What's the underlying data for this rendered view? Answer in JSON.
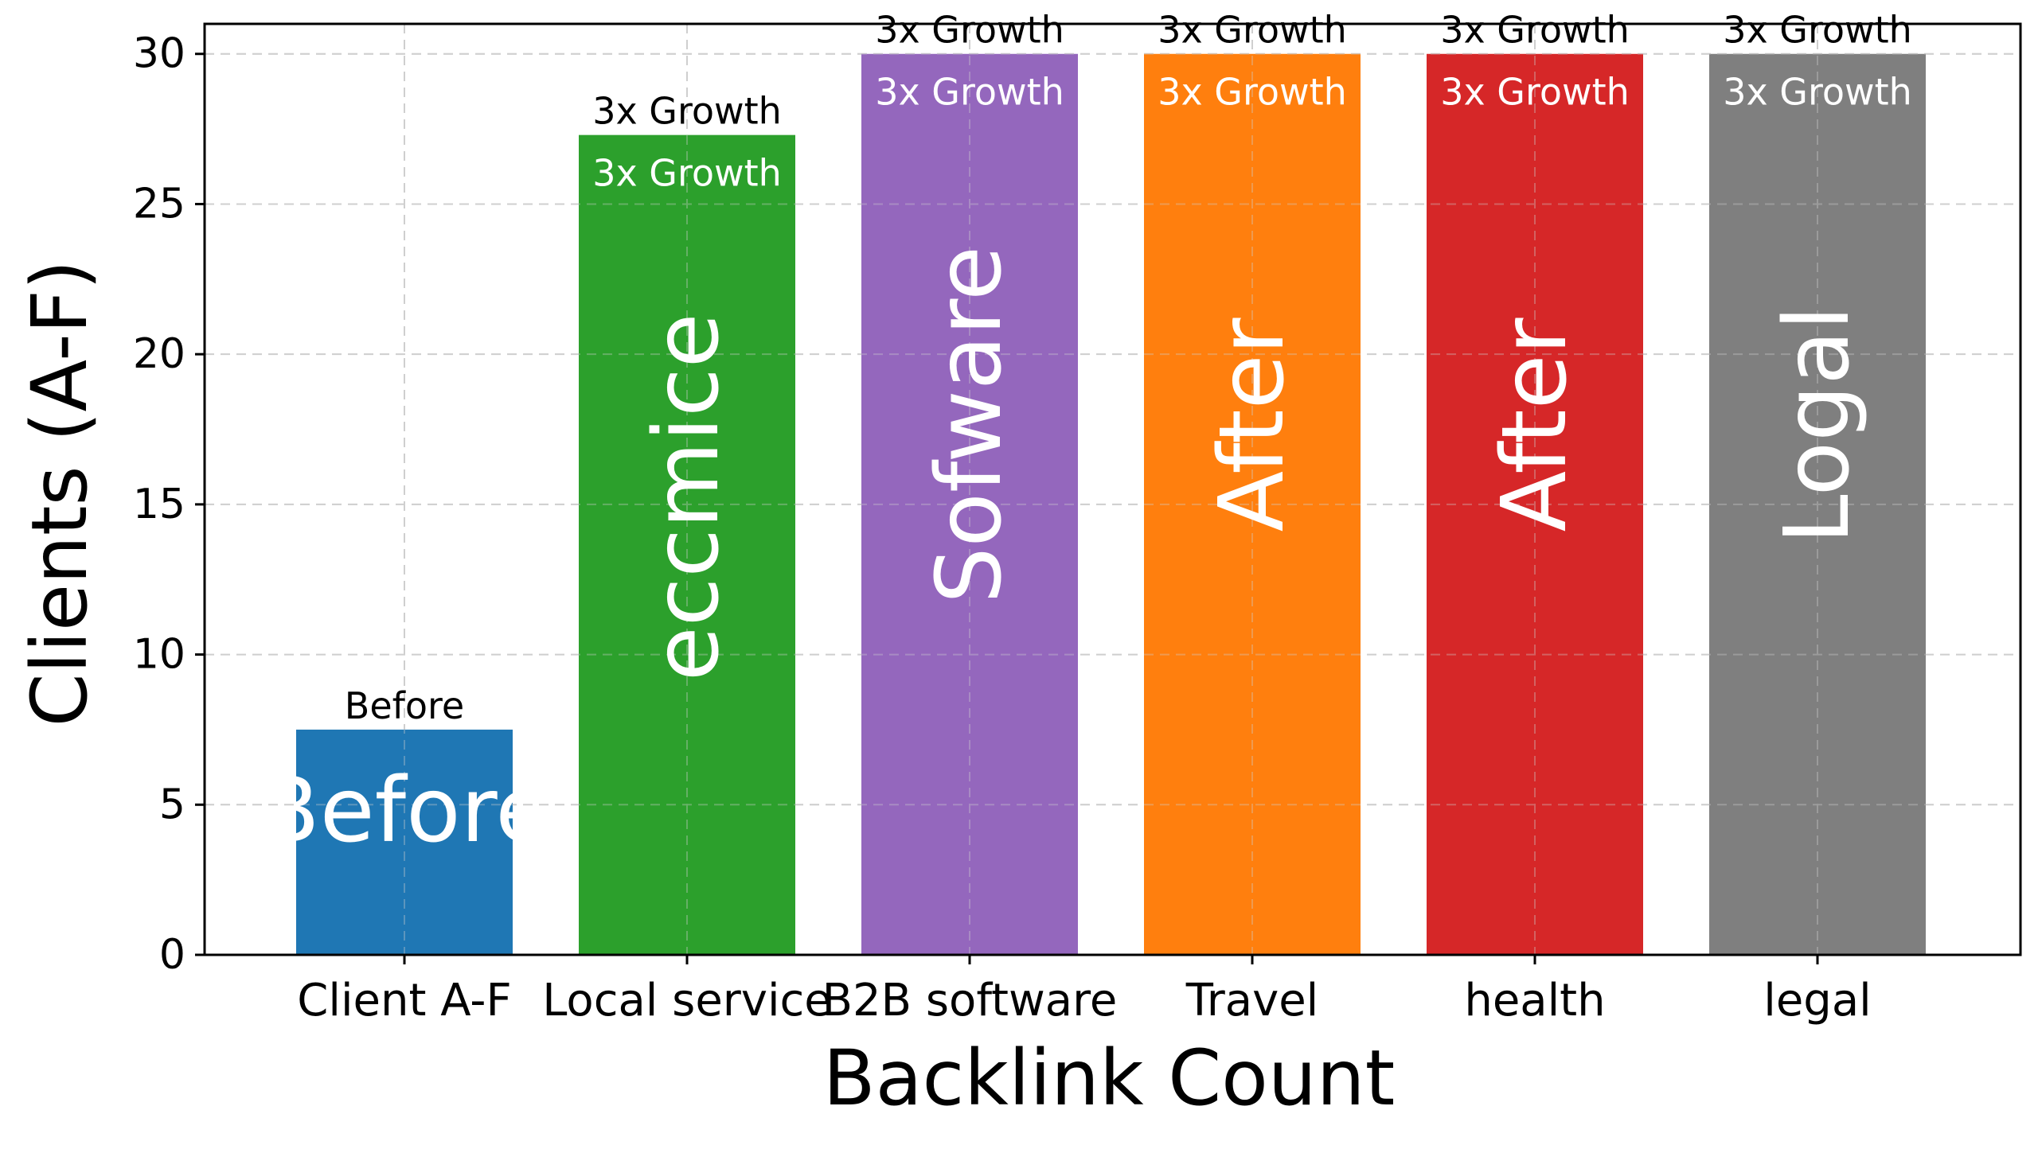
{
  "chart_data": {
    "type": "bar",
    "title": "",
    "xlabel": "Backlink Count",
    "ylabel": "Clients (A-F)",
    "categories": [
      "Client A-F",
      "Local service",
      "B2B software",
      "Travel",
      "health",
      "legal"
    ],
    "values": [
      7.5,
      27.3,
      30,
      30,
      30,
      30
    ],
    "bar_colors": [
      "#1f77b4",
      "#2ca02c",
      "#9467bd",
      "#ff7f0e",
      "#d62728",
      "#7f7f7f"
    ],
    "above_labels": [
      "Before",
      "3x Growth",
      "3x Growth",
      "3x Growth",
      "3x Growth",
      "3x Growth"
    ],
    "inner_top_labels": [
      "",
      "3x Growth",
      "3x Growth",
      "3x Growth",
      "3x Growth",
      "3x Growth"
    ],
    "inside_labels": [
      "Before",
      "eccmice",
      "Sofware",
      "After",
      "After",
      "Logal"
    ],
    "inside_labels_vertical": [
      false,
      true,
      true,
      true,
      true,
      true
    ],
    "ylim": [
      0,
      31
    ],
    "yticks": [
      0,
      5,
      10,
      15,
      20,
      25,
      30
    ],
    "grid": true,
    "legend": "none"
  }
}
